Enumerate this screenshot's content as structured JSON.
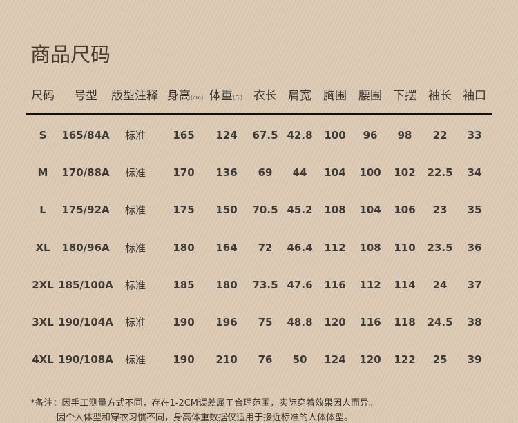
{
  "title": "商品尺码",
  "headers": [
    {
      "label": "尺码"
    },
    {
      "label": "号型"
    },
    {
      "label": "版型注释"
    },
    {
      "label": "身高",
      "unit": "(cm)"
    },
    {
      "label": "体重",
      "unit": "(斤)"
    },
    {
      "label": "衣长"
    },
    {
      "label": "肩宽"
    },
    {
      "label": "胸围"
    },
    {
      "label": "腰围"
    },
    {
      "label": "下摆"
    },
    {
      "label": "袖长"
    },
    {
      "label": "袖口"
    }
  ],
  "rows": [
    [
      "S",
      "165/84A",
      "标准",
      "165",
      "124",
      "67.5",
      "42.8",
      "100",
      "96",
      "98",
      "22",
      "33"
    ],
    [
      "M",
      "170/88A",
      "标准",
      "170",
      "136",
      "69",
      "44",
      "104",
      "100",
      "102",
      "22.5",
      "34"
    ],
    [
      "L",
      "175/92A",
      "标准",
      "175",
      "150",
      "70.5",
      "45.2",
      "108",
      "104",
      "106",
      "23",
      "35"
    ],
    [
      "XL",
      "180/96A",
      "标准",
      "180",
      "164",
      "72",
      "46.4",
      "112",
      "108",
      "110",
      "23.5",
      "36"
    ],
    [
      "2XL",
      "185/100A",
      "标准",
      "185",
      "180",
      "73.5",
      "47.6",
      "116",
      "112",
      "114",
      "24",
      "37"
    ],
    [
      "3XL",
      "190/104A",
      "标准",
      "190",
      "196",
      "75",
      "48.8",
      "120",
      "116",
      "118",
      "24.5",
      "38"
    ],
    [
      "4XL",
      "190/108A",
      "标准",
      "190",
      "210",
      "76",
      "50",
      "124",
      "120",
      "122",
      "25",
      "39"
    ]
  ],
  "notes": [
    "*备注：因手工测量方式不同，存在1-2CM误差属于合理范围，实际穿着效果因人而异。",
    "因个人体型和穿衣习惯不同，身高体重数据仅适用于接近标准的人体体型。"
  ]
}
